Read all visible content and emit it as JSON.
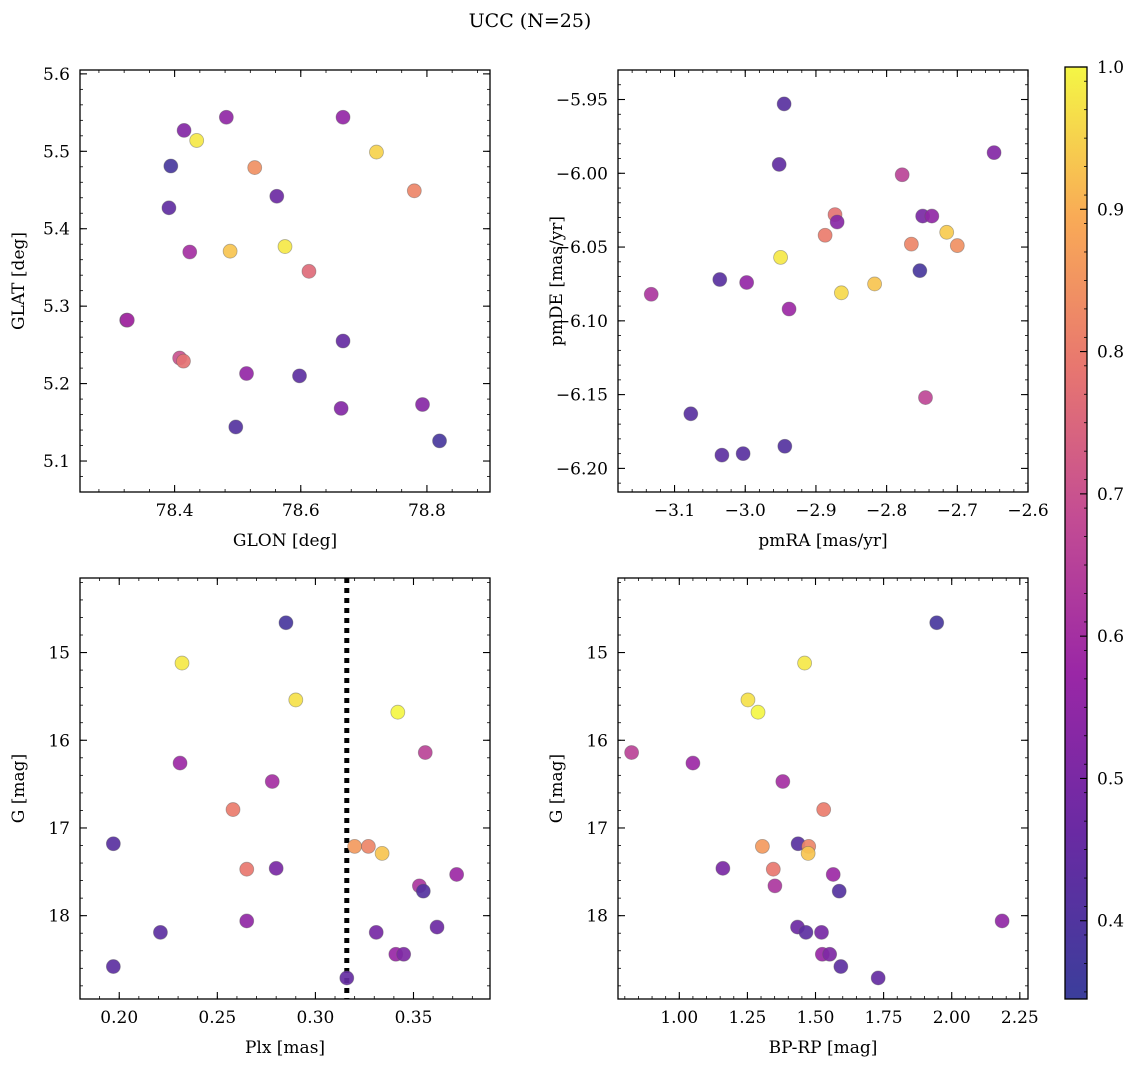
{
  "title": "UCC (N=25)",
  "colorbar": {
    "range": [
      0.345,
      1.0
    ],
    "ticks": [
      0.4,
      0.5,
      0.6,
      0.7,
      0.8,
      0.9,
      1.0
    ],
    "tick_labels": [
      "0.4",
      "0.5",
      "0.6",
      "0.7",
      "0.8",
      "0.9",
      "1.0"
    ],
    "colormap": "plasma"
  },
  "chart_data": [
    {
      "type": "scatter",
      "xlabel": "GLON [deg]",
      "ylabel": "GLAT [deg]",
      "xlim": [
        78.25,
        78.9
      ],
      "ylim": [
        5.06,
        5.605
      ],
      "xticks": [
        78.4,
        78.6,
        78.8
      ],
      "xtick_labels": [
        "78.4",
        "78.6",
        "78.8"
      ],
      "yticks": [
        5.1,
        5.2,
        5.3,
        5.4,
        5.5,
        5.6
      ],
      "ytick_labels": [
        "5.1",
        "5.2",
        "5.3",
        "5.4",
        "5.5",
        "5.6"
      ],
      "points": [
        {
          "x": 78.415,
          "y": 5.527,
          "c": 0.52
        },
        {
          "x": 78.482,
          "y": 5.544,
          "c": 0.55
        },
        {
          "x": 78.667,
          "y": 5.544,
          "c": 0.56
        },
        {
          "x": 78.435,
          "y": 5.514,
          "c": 0.98
        },
        {
          "x": 78.72,
          "y": 5.499,
          "c": 0.95
        },
        {
          "x": 78.394,
          "y": 5.481,
          "c": 0.38
        },
        {
          "x": 78.527,
          "y": 5.479,
          "c": 0.84
        },
        {
          "x": 78.78,
          "y": 5.449,
          "c": 0.82
        },
        {
          "x": 78.562,
          "y": 5.442,
          "c": 0.47
        },
        {
          "x": 78.391,
          "y": 5.427,
          "c": 0.44
        },
        {
          "x": 78.575,
          "y": 5.377,
          "c": 0.98
        },
        {
          "x": 78.488,
          "y": 5.371,
          "c": 0.93
        },
        {
          "x": 78.424,
          "y": 5.37,
          "c": 0.6
        },
        {
          "x": 78.613,
          "y": 5.345,
          "c": 0.76
        },
        {
          "x": 78.324,
          "y": 5.282,
          "c": 0.55
        },
        {
          "x": 78.325,
          "y": 5.282,
          "c": 0.6
        },
        {
          "x": 78.667,
          "y": 5.255,
          "c": 0.45
        },
        {
          "x": 78.408,
          "y": 5.233,
          "c": 0.7
        },
        {
          "x": 78.414,
          "y": 5.229,
          "c": 0.78
        },
        {
          "x": 78.514,
          "y": 5.213,
          "c": 0.56
        },
        {
          "x": 78.598,
          "y": 5.21,
          "c": 0.43
        },
        {
          "x": 78.793,
          "y": 5.173,
          "c": 0.53
        },
        {
          "x": 78.664,
          "y": 5.168,
          "c": 0.52
        },
        {
          "x": 78.497,
          "y": 5.144,
          "c": 0.41
        },
        {
          "x": 78.82,
          "y": 5.126,
          "c": 0.38
        }
      ]
    },
    {
      "type": "scatter",
      "xlabel": "pmRA [mas/yr]",
      "ylabel": "pmDE [mas/yr]",
      "xlim": [
        -3.18,
        -2.6
      ],
      "ylim": [
        -6.216,
        -5.93
      ],
      "xticks": [
        -3.1,
        -3.0,
        -2.9,
        -2.8,
        -2.7,
        -2.6
      ],
      "xtick_labels": [
        "−3.1",
        "−3.0",
        "−2.9",
        "−2.8",
        "−2.7",
        "−2.6"
      ],
      "yticks": [
        -6.2,
        -6.15,
        -6.1,
        -6.05,
        -6.0,
        -5.95
      ],
      "ytick_labels": [
        "−6.20",
        "−6.15",
        "−6.10",
        "−6.05",
        "−6.00",
        "−5.95"
      ],
      "points": [
        {
          "x": -2.945,
          "y": -5.953,
          "c": 0.42
        },
        {
          "x": -2.952,
          "y": -5.994,
          "c": 0.44
        },
        {
          "x": -2.648,
          "y": -5.986,
          "c": 0.52
        },
        {
          "x": -2.778,
          "y": -6.001,
          "c": 0.66
        },
        {
          "x": -2.873,
          "y": -6.028,
          "c": 0.78
        },
        {
          "x": -2.87,
          "y": -6.033,
          "c": 0.53
        },
        {
          "x": -2.749,
          "y": -6.029,
          "c": 0.5
        },
        {
          "x": -2.736,
          "y": -6.029,
          "c": 0.55
        },
        {
          "x": -2.715,
          "y": -6.04,
          "c": 0.94
        },
        {
          "x": -2.887,
          "y": -6.042,
          "c": 0.8
        },
        {
          "x": -2.765,
          "y": -6.048,
          "c": 0.82
        },
        {
          "x": -2.7,
          "y": -6.049,
          "c": 0.84
        },
        {
          "x": -2.95,
          "y": -6.057,
          "c": 0.98
        },
        {
          "x": -2.753,
          "y": -6.066,
          "c": 0.38
        },
        {
          "x": -3.036,
          "y": -6.072,
          "c": 0.42
        },
        {
          "x": -2.998,
          "y": -6.074,
          "c": 0.56
        },
        {
          "x": -2.817,
          "y": -6.075,
          "c": 0.93
        },
        {
          "x": -2.864,
          "y": -6.081,
          "c": 0.96
        },
        {
          "x": -3.133,
          "y": -6.082,
          "c": 0.62
        },
        {
          "x": -2.938,
          "y": -6.092,
          "c": 0.58
        },
        {
          "x": -2.745,
          "y": -6.152,
          "c": 0.67
        },
        {
          "x": -3.077,
          "y": -6.163,
          "c": 0.42
        },
        {
          "x": -2.944,
          "y": -6.185,
          "c": 0.41
        },
        {
          "x": -3.003,
          "y": -6.19,
          "c": 0.42
        },
        {
          "x": -3.033,
          "y": -6.191,
          "c": 0.43
        }
      ]
    },
    {
      "type": "scatter",
      "xlabel": "Plx [mas]",
      "ylabel": "G [mag]",
      "xlim": [
        0.18,
        0.389
      ],
      "ylim": [
        18.95,
        14.15
      ],
      "y_inverted": true,
      "vline": {
        "x": 0.316,
        "style": "dotted"
      },
      "xticks": [
        0.2,
        0.25,
        0.3,
        0.35
      ],
      "xtick_labels": [
        "0.20",
        "0.25",
        "0.30",
        "0.35"
      ],
      "yticks": [
        15,
        16,
        17,
        18
      ],
      "ytick_labels": [
        "15",
        "16",
        "17",
        "18"
      ],
      "points": [
        {
          "x": 0.285,
          "y": 14.66,
          "c": 0.38
        },
        {
          "x": 0.232,
          "y": 15.12,
          "c": 0.98
        },
        {
          "x": 0.29,
          "y": 15.54,
          "c": 0.97
        },
        {
          "x": 0.342,
          "y": 15.68,
          "c": 1.0
        },
        {
          "x": 0.356,
          "y": 16.14,
          "c": 0.66
        },
        {
          "x": 0.231,
          "y": 16.26,
          "c": 0.58
        },
        {
          "x": 0.278,
          "y": 16.47,
          "c": 0.6
        },
        {
          "x": 0.258,
          "y": 16.79,
          "c": 0.8
        },
        {
          "x": 0.197,
          "y": 17.18,
          "c": 0.42
        },
        {
          "x": 0.32,
          "y": 17.21,
          "c": 0.86
        },
        {
          "x": 0.327,
          "y": 17.21,
          "c": 0.82
        },
        {
          "x": 0.334,
          "y": 17.29,
          "c": 0.93
        },
        {
          "x": 0.265,
          "y": 17.47,
          "c": 0.79
        },
        {
          "x": 0.28,
          "y": 17.46,
          "c": 0.5
        },
        {
          "x": 0.372,
          "y": 17.53,
          "c": 0.58
        },
        {
          "x": 0.353,
          "y": 17.66,
          "c": 0.62
        },
        {
          "x": 0.355,
          "y": 17.72,
          "c": 0.41
        },
        {
          "x": 0.265,
          "y": 18.06,
          "c": 0.55
        },
        {
          "x": 0.362,
          "y": 18.13,
          "c": 0.47
        },
        {
          "x": 0.221,
          "y": 18.19,
          "c": 0.43
        },
        {
          "x": 0.331,
          "y": 18.19,
          "c": 0.49
        },
        {
          "x": 0.341,
          "y": 18.44,
          "c": 0.57
        },
        {
          "x": 0.345,
          "y": 18.44,
          "c": 0.51
        },
        {
          "x": 0.197,
          "y": 18.58,
          "c": 0.43
        },
        {
          "x": 0.316,
          "y": 18.71,
          "c": 0.45
        }
      ]
    },
    {
      "type": "scatter",
      "xlabel": "BP-RP [mag]",
      "ylabel": "G [mag]",
      "xlim": [
        0.775,
        2.28
      ],
      "ylim": [
        18.95,
        14.15
      ],
      "y_inverted": true,
      "xticks": [
        1.0,
        1.25,
        1.5,
        1.75,
        2.0,
        2.25
      ],
      "xtick_labels": [
        "1.00",
        "1.25",
        "1.50",
        "1.75",
        "2.00",
        "2.25"
      ],
      "yticks": [
        15,
        16,
        17,
        18
      ],
      "ytick_labels": [
        "15",
        "16",
        "17",
        "18"
      ],
      "points": [
        {
          "x": 1.945,
          "y": 14.66,
          "c": 0.38
        },
        {
          "x": 1.46,
          "y": 15.12,
          "c": 0.98
        },
        {
          "x": 1.252,
          "y": 15.54,
          "c": 0.97
        },
        {
          "x": 1.289,
          "y": 15.68,
          "c": 1.0
        },
        {
          "x": 0.825,
          "y": 16.14,
          "c": 0.66
        },
        {
          "x": 1.05,
          "y": 16.26,
          "c": 0.58
        },
        {
          "x": 1.38,
          "y": 16.47,
          "c": 0.6
        },
        {
          "x": 1.53,
          "y": 16.79,
          "c": 0.8
        },
        {
          "x": 1.436,
          "y": 17.18,
          "c": 0.42
        },
        {
          "x": 1.305,
          "y": 17.21,
          "c": 0.86
        },
        {
          "x": 1.475,
          "y": 17.21,
          "c": 0.82
        },
        {
          "x": 1.473,
          "y": 17.29,
          "c": 0.93
        },
        {
          "x": 1.345,
          "y": 17.47,
          "c": 0.79
        },
        {
          "x": 1.16,
          "y": 17.46,
          "c": 0.5
        },
        {
          "x": 1.565,
          "y": 17.53,
          "c": 0.58
        },
        {
          "x": 1.351,
          "y": 17.66,
          "c": 0.62
        },
        {
          "x": 1.587,
          "y": 17.72,
          "c": 0.41
        },
        {
          "x": 2.185,
          "y": 18.06,
          "c": 0.55
        },
        {
          "x": 1.434,
          "y": 18.13,
          "c": 0.47
        },
        {
          "x": 1.465,
          "y": 18.19,
          "c": 0.43
        },
        {
          "x": 1.522,
          "y": 18.19,
          "c": 0.49
        },
        {
          "x": 1.525,
          "y": 18.44,
          "c": 0.57
        },
        {
          "x": 1.552,
          "y": 18.44,
          "c": 0.51
        },
        {
          "x": 1.593,
          "y": 18.58,
          "c": 0.43
        },
        {
          "x": 1.73,
          "y": 18.71,
          "c": 0.45
        }
      ]
    }
  ]
}
